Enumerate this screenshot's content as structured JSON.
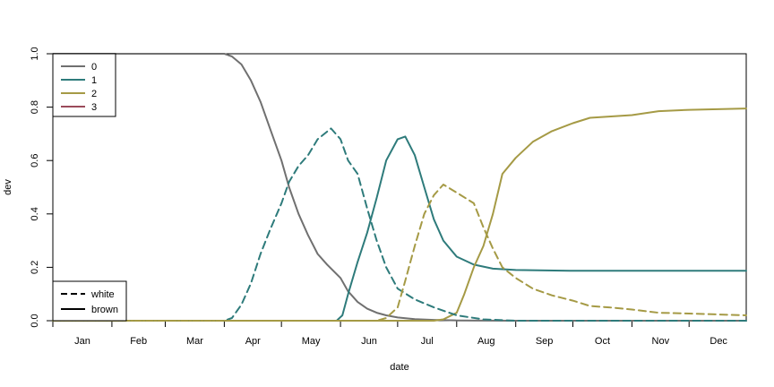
{
  "chart_data": {
    "type": "line",
    "xlabel": "date",
    "ylabel": "dev",
    "x_ticks": [
      "Jan",
      "Feb",
      "Mar",
      "Apr",
      "May",
      "Jun",
      "Jul",
      "Aug",
      "Sep",
      "Oct",
      "Nov",
      "Dec"
    ],
    "y_ticks": [
      "0.0",
      "0.2",
      "0.4",
      "0.6",
      "0.8",
      "1.0"
    ],
    "ylim": [
      0,
      1
    ],
    "xlim": [
      "Jan 1",
      "Dec 31"
    ],
    "grid": false,
    "legend_top": {
      "placement": "top-left",
      "entries": [
        {
          "label": "0",
          "color": "#707070"
        },
        {
          "label": "1",
          "color": "#2e7b7b"
        },
        {
          "label": "2",
          "color": "#a59a45"
        },
        {
          "label": "3",
          "color": "#9a4a5a"
        }
      ]
    },
    "legend_bottom": {
      "placement": "bottom-left",
      "entries": [
        {
          "label": "white",
          "style": "dashed"
        },
        {
          "label": "brown",
          "style": "solid"
        }
      ]
    },
    "series": [
      {
        "name": "0",
        "style": "solid",
        "color": "#707070",
        "points": [
          [
            "Jan 1",
            1.0
          ],
          [
            "Apr 1",
            1.0
          ],
          [
            "Apr 5",
            0.99
          ],
          [
            "Apr 10",
            0.96
          ],
          [
            "Apr 15",
            0.9
          ],
          [
            "Apr 20",
            0.82
          ],
          [
            "Apr 25",
            0.72
          ],
          [
            "May 1",
            0.6
          ],
          [
            "May 5",
            0.5
          ],
          [
            "May 10",
            0.4
          ],
          [
            "May 15",
            0.32
          ],
          [
            "May 20",
            0.25
          ],
          [
            "May 25",
            0.21
          ],
          [
            "Jun 1",
            0.16
          ],
          [
            "Jun 5",
            0.11
          ],
          [
            "Jun 10",
            0.07
          ],
          [
            "Jun 15",
            0.045
          ],
          [
            "Jun 20",
            0.03
          ],
          [
            "Jun 25",
            0.02
          ],
          [
            "Jul 1",
            0.012
          ],
          [
            "Jul 10",
            0.006
          ],
          [
            "Jul 20",
            0.003
          ],
          [
            "Aug 1",
            0.001
          ],
          [
            "Sep 1",
            0.0
          ],
          [
            "Dec 31",
            0.0
          ]
        ]
      },
      {
        "name": "1",
        "style": "solid",
        "color": "#2e7b7b",
        "points": [
          [
            "Jan 1",
            0.0
          ],
          [
            "May 30",
            0.0
          ],
          [
            "Jun 2",
            0.02
          ],
          [
            "Jun 5",
            0.1
          ],
          [
            "Jun 10",
            0.22
          ],
          [
            "Jun 15",
            0.33
          ],
          [
            "Jun 20",
            0.46
          ],
          [
            "Jun 25",
            0.6
          ],
          [
            "Jul 1",
            0.68
          ],
          [
            "Jul 5",
            0.69
          ],
          [
            "Jul 10",
            0.62
          ],
          [
            "Jul 15",
            0.5
          ],
          [
            "Jul 20",
            0.38
          ],
          [
            "Jul 25",
            0.3
          ],
          [
            "Aug 1",
            0.24
          ],
          [
            "Aug 10",
            0.21
          ],
          [
            "Aug 20",
            0.195
          ],
          [
            "Sep 1",
            0.19
          ],
          [
            "Oct 1",
            0.187
          ],
          [
            "Dec 31",
            0.187
          ]
        ]
      },
      {
        "name": "2",
        "style": "solid",
        "color": "#a59a45",
        "points": [
          [
            "Jan 1",
            0.0
          ],
          [
            "Jul 20",
            0.0
          ],
          [
            "Jul 25",
            0.005
          ],
          [
            "Aug 1",
            0.03
          ],
          [
            "Aug 5",
            0.1
          ],
          [
            "Aug 10",
            0.2
          ],
          [
            "Aug 15",
            0.28
          ],
          [
            "Aug 20",
            0.4
          ],
          [
            "Aug 25",
            0.55
          ],
          [
            "Sep 1",
            0.61
          ],
          [
            "Sep 10",
            0.67
          ],
          [
            "Sep 20",
            0.71
          ],
          [
            "Oct 1",
            0.74
          ],
          [
            "Oct 10",
            0.76
          ],
          [
            "Nov 1",
            0.77
          ],
          [
            "Nov 15",
            0.785
          ],
          [
            "Dec 1",
            0.79
          ],
          [
            "Dec 31",
            0.795
          ]
        ]
      },
      {
        "name": "0",
        "style": "dashed",
        "color": "#2e7b7b",
        "points": [
          [
            "Jan 1",
            0.0
          ],
          [
            "Apr 1",
            0.0
          ],
          [
            "Apr 5",
            0.01
          ],
          [
            "Apr 10",
            0.06
          ],
          [
            "Apr 15",
            0.14
          ],
          [
            "Apr 20",
            0.25
          ],
          [
            "Apr 25",
            0.34
          ],
          [
            "May 1",
            0.44
          ],
          [
            "May 5",
            0.52
          ],
          [
            "May 10",
            0.58
          ],
          [
            "May 15",
            0.62
          ],
          [
            "May 20",
            0.68
          ],
          [
            "May 27",
            0.72
          ],
          [
            "Jun 1",
            0.68
          ],
          [
            "Jun 5",
            0.6
          ],
          [
            "Jun 10",
            0.55
          ],
          [
            "Jun 15",
            0.42
          ],
          [
            "Jun 20",
            0.3
          ],
          [
            "Jun 25",
            0.2
          ],
          [
            "Jul 1",
            0.12
          ],
          [
            "Jul 10",
            0.08
          ],
          [
            "Jul 20",
            0.05
          ],
          [
            "Aug 1",
            0.02
          ],
          [
            "Aug 15",
            0.005
          ],
          [
            "Sep 1",
            0.0
          ],
          [
            "Dec 31",
            0.0
          ]
        ]
      },
      {
        "name": "1",
        "style": "dashed",
        "color": "#a59a45",
        "points": [
          [
            "Jan 1",
            0.0
          ],
          [
            "Jun 20",
            0.0
          ],
          [
            "Jun 25",
            0.01
          ],
          [
            "Jul 1",
            0.05
          ],
          [
            "Jul 5",
            0.15
          ],
          [
            "Jul 10",
            0.28
          ],
          [
            "Jul 15",
            0.4
          ],
          [
            "Jul 20",
            0.47
          ],
          [
            "Jul 25",
            0.51
          ],
          [
            "Aug 1",
            0.48
          ],
          [
            "Aug 10",
            0.44
          ],
          [
            "Aug 15",
            0.35
          ],
          [
            "Aug 20",
            0.27
          ],
          [
            "Aug 25",
            0.2
          ],
          [
            "Sep 1",
            0.16
          ],
          [
            "Sep 10",
            0.12
          ],
          [
            "Sep 20",
            0.095
          ],
          [
            "Oct 1",
            0.075
          ],
          [
            "Oct 10",
            0.055
          ],
          [
            "Oct 20",
            0.05
          ],
          [
            "Nov 1",
            0.042
          ],
          [
            "Nov 15",
            0.03
          ],
          [
            "Dec 1",
            0.027
          ],
          [
            "Dec 31",
            0.02
          ]
        ]
      }
    ]
  }
}
